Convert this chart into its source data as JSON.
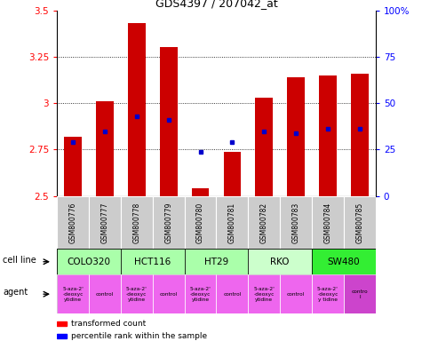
{
  "title": "GDS4397 / 207042_at",
  "samples": [
    "GSM800776",
    "GSM800777",
    "GSM800778",
    "GSM800779",
    "GSM800780",
    "GSM800781",
    "GSM800782",
    "GSM800783",
    "GSM800784",
    "GSM800785"
  ],
  "red_values": [
    2.82,
    3.01,
    3.43,
    3.3,
    2.54,
    2.74,
    3.03,
    3.14,
    3.15,
    3.16
  ],
  "blue_values": [
    2.79,
    2.85,
    2.93,
    2.91,
    2.74,
    2.79,
    2.85,
    2.84,
    2.86,
    2.86
  ],
  "ylim": [
    2.5,
    3.5
  ],
  "yticks": [
    2.5,
    2.75,
    3.0,
    3.25,
    3.5
  ],
  "ytick_labels": [
    "2.5",
    "2.75",
    "3",
    "3.25",
    "3.5"
  ],
  "right_yticks": [
    0,
    25,
    50,
    75,
    100
  ],
  "right_ytick_labels": [
    "0",
    "25",
    "50",
    "75",
    "100%"
  ],
  "cell_lines": [
    {
      "name": "COLO320",
      "start": 0,
      "end": 2,
      "color": "#aaffaa"
    },
    {
      "name": "HCT116",
      "start": 2,
      "end": 4,
      "color": "#aaffaa"
    },
    {
      "name": "HT29",
      "start": 4,
      "end": 6,
      "color": "#aaffaa"
    },
    {
      "name": "RKO",
      "start": 6,
      "end": 8,
      "color": "#ccffcc"
    },
    {
      "name": "SW480",
      "start": 8,
      "end": 10,
      "color": "#33ee33"
    }
  ],
  "agents": [
    {
      "name": "5-aza-2'\n-deoxyc\nytidine",
      "col": 0,
      "color": "#ee66ee"
    },
    {
      "name": "control",
      "col": 1,
      "color": "#ee66ee"
    },
    {
      "name": "5-aza-2'\n-deoxyc\nytidine",
      "col": 2,
      "color": "#ee66ee"
    },
    {
      "name": "control",
      "col": 3,
      "color": "#ee66ee"
    },
    {
      "name": "5-aza-2'\n-deoxyc\nytidine",
      "col": 4,
      "color": "#ee66ee"
    },
    {
      "name": "control",
      "col": 5,
      "color": "#ee66ee"
    },
    {
      "name": "5-aza-2'\n-deoxyc\nytidine",
      "col": 6,
      "color": "#ee66ee"
    },
    {
      "name": "control",
      "col": 7,
      "color": "#ee66ee"
    },
    {
      "name": "5-aza-2'\n-deoxyc\ny tidine",
      "col": 8,
      "color": "#ee66ee"
    },
    {
      "name": "contro\nl",
      "col": 9,
      "color": "#cc44cc"
    }
  ],
  "bar_color": "#cc0000",
  "dot_color": "#0000cc",
  "sample_bg": "#cccccc"
}
